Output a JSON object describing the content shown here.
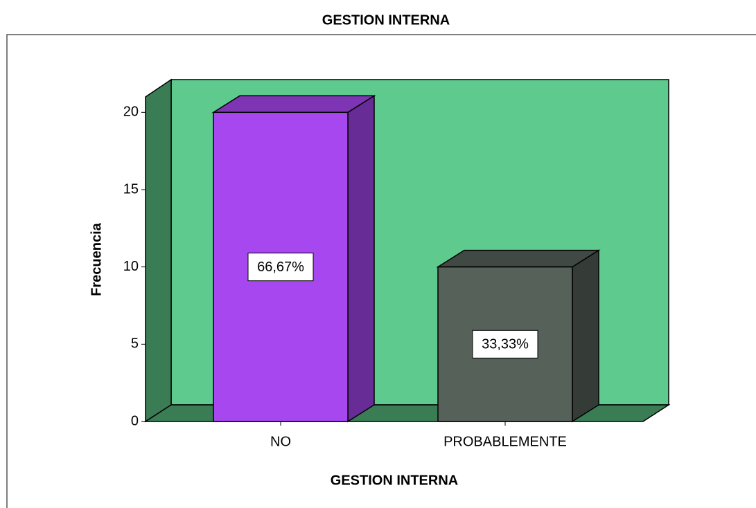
{
  "chart_data": {
    "type": "bar3d",
    "title": "GESTION INTERNA",
    "x_label": "GESTION INTERNA",
    "y_label": "Frecuencia",
    "categories": [
      "NO",
      "PROBABLEMENTE"
    ],
    "values": [
      20,
      10
    ],
    "percent_labels": [
      "66,67%",
      "33,33%"
    ],
    "colors": [
      "#a647f0",
      "#56615a"
    ],
    "ylim": [
      0,
      21
    ],
    "yticks": [
      0,
      5,
      10,
      15,
      20
    ]
  }
}
